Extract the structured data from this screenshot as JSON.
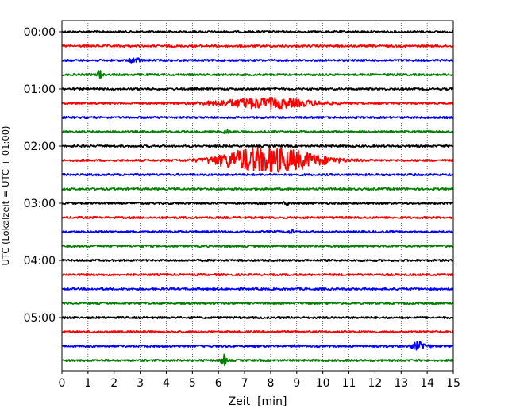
{
  "chart_data": {
    "type": "line",
    "title": "",
    "xlabel": "Zeit  [min]",
    "ylabel": "UTC (Lokalzeit = UTC + 01:00)",
    "xlim": [
      0,
      15
    ],
    "x_ticks": [
      0,
      1,
      2,
      3,
      4,
      5,
      6,
      7,
      8,
      9,
      10,
      11,
      12,
      13,
      14,
      15
    ],
    "x_grid": true,
    "y_tick_labels": [
      "00:00",
      "01:00",
      "02:00",
      "03:00",
      "04:00",
      "05:00"
    ],
    "trace_interval_min": 15,
    "color_cycle": [
      "#000000",
      "#ff0000",
      "#0000ff",
      "#008000"
    ],
    "traces": [
      {
        "start": "00:00",
        "color": "#000000",
        "events": []
      },
      {
        "start": "00:15",
        "color": "#ff0000",
        "events": []
      },
      {
        "start": "00:30",
        "color": "#0000ff",
        "events": [
          {
            "t": 2.8,
            "amp": 3,
            "dur": 0.2
          }
        ]
      },
      {
        "start": "00:45",
        "color": "#008000",
        "events": [
          {
            "t": 1.45,
            "amp": 6,
            "dur": 0.08
          }
        ]
      },
      {
        "start": "01:00",
        "color": "#000000",
        "events": []
      },
      {
        "start": "01:15",
        "color": "#ff0000",
        "events": [
          {
            "t": 7.8,
            "amp": 6,
            "dur": 1.8
          }
        ]
      },
      {
        "start": "01:30",
        "color": "#0000ff",
        "events": []
      },
      {
        "start": "01:45",
        "color": "#008000",
        "events": [
          {
            "t": 6.3,
            "amp": 3,
            "dur": 0.1
          }
        ]
      },
      {
        "start": "02:00",
        "color": "#000000",
        "events": []
      },
      {
        "start": "02:15",
        "color": "#ff0000",
        "events": [
          {
            "t": 6.9,
            "amp": 7,
            "dur": 1.2
          },
          {
            "t": 8.4,
            "amp": 13,
            "dur": 1.6
          }
        ]
      },
      {
        "start": "02:30",
        "color": "#0000ff",
        "events": []
      },
      {
        "start": "02:45",
        "color": "#008000",
        "events": []
      },
      {
        "start": "03:00",
        "color": "#000000",
        "events": [
          {
            "t": 8.6,
            "amp": 2,
            "dur": 0.1
          }
        ]
      },
      {
        "start": "03:15",
        "color": "#ff0000",
        "events": []
      },
      {
        "start": "03:30",
        "color": "#0000ff",
        "events": [
          {
            "t": 8.8,
            "amp": 2,
            "dur": 0.1
          }
        ]
      },
      {
        "start": "03:45",
        "color": "#008000",
        "events": []
      },
      {
        "start": "04:00",
        "color": "#000000",
        "events": []
      },
      {
        "start": "04:15",
        "color": "#ff0000",
        "events": []
      },
      {
        "start": "04:30",
        "color": "#0000ff",
        "events": []
      },
      {
        "start": "04:45",
        "color": "#008000",
        "events": []
      },
      {
        "start": "05:00",
        "color": "#000000",
        "events": []
      },
      {
        "start": "05:15",
        "color": "#ff0000",
        "events": []
      },
      {
        "start": "05:30",
        "color": "#0000ff",
        "events": [
          {
            "t": 13.7,
            "amp": 5,
            "dur": 0.3
          },
          {
            "t": 9.0,
            "amp": 2,
            "dur": 0.1
          }
        ]
      },
      {
        "start": "05:45",
        "color": "#008000",
        "events": [
          {
            "t": 6.2,
            "amp": 7,
            "dur": 0.1
          }
        ]
      }
    ]
  }
}
